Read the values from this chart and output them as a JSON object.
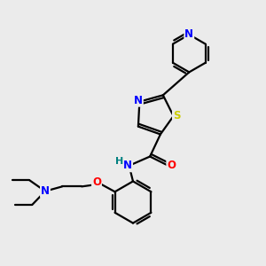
{
  "bg_color": "#ebebeb",
  "bond_color": "#000000",
  "bond_width": 1.6,
  "atom_colors": {
    "N": "#0000ff",
    "O": "#ff0000",
    "S": "#cccc00",
    "H": "#008080",
    "C": "#000000"
  },
  "font_size": 8.5
}
